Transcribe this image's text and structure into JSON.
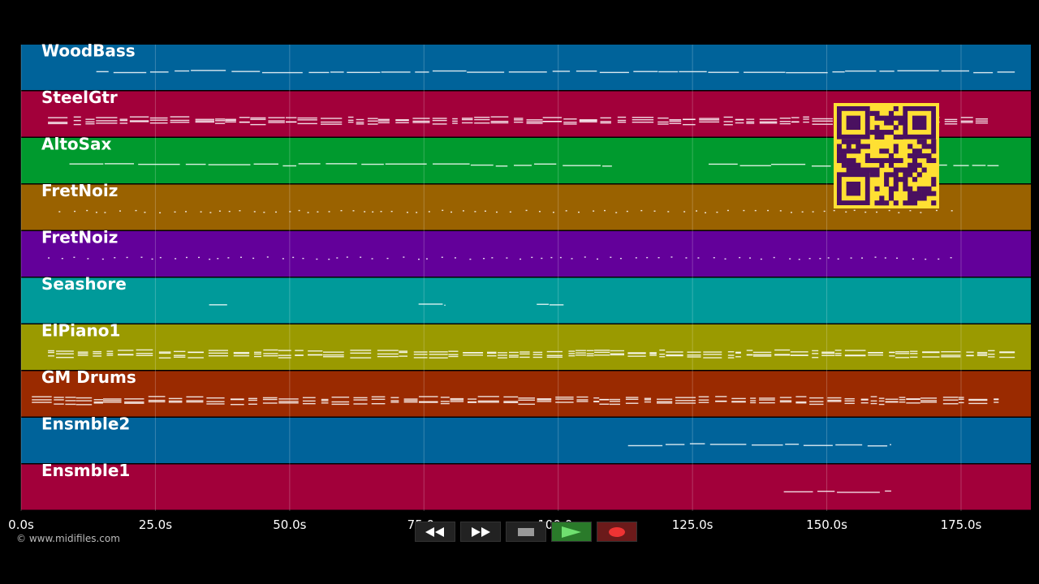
{
  "tracks": [
    {
      "name": "WoodBass",
      "color": "#00639a"
    },
    {
      "name": "SteelGtr",
      "color": "#a2003a"
    },
    {
      "name": "AltoSax",
      "color": "#009a2e"
    },
    {
      "name": "FretNoiz",
      "color": "#9a6200"
    },
    {
      "name": "FretNoiz",
      "color": "#63009a"
    },
    {
      "name": "Seashore",
      "color": "#009a9a"
    },
    {
      "name": "ElPiano1",
      "color": "#9a9a00"
    },
    {
      "name": "GM Drums",
      "color": "#9a2a00"
    },
    {
      "name": "Ensmble2",
      "color": "#00639a"
    },
    {
      "name": "Ensmble1",
      "color": "#a2003a"
    }
  ],
  "timeline": {
    "unit": "s",
    "max_seconds": 188,
    "ticks": [
      "0.0s",
      "25.0s",
      "50.0s",
      "75.0s",
      "100.0s",
      "125.0s",
      "150.0s",
      "175.0s"
    ],
    "tick_values": [
      0,
      25,
      50,
      75,
      100,
      125,
      150,
      175
    ]
  },
  "note_ranges": [
    [
      [
        14,
        185
      ]
    ],
    [
      [
        5,
        180
      ]
    ],
    [
      [
        9,
        110
      ],
      [
        128,
        182
      ]
    ],
    [
      [
        7,
        174
      ]
    ],
    [
      [
        5,
        174
      ]
    ],
    [
      [
        35,
        39
      ],
      [
        74,
        79
      ],
      [
        96,
        101
      ]
    ],
    [
      [
        5,
        185
      ]
    ],
    [
      [
        2,
        182
      ]
    ],
    [
      [
        113,
        162
      ]
    ],
    [
      [
        142,
        162
      ]
    ]
  ],
  "qr_icon": "qr-code-icon",
  "copyright": "© www.midifiles.com",
  "transport": {
    "buttons": [
      {
        "name": "rewind-button",
        "icon": "rewind-icon"
      },
      {
        "name": "fast-forward-button",
        "icon": "fast-forward-icon"
      },
      {
        "name": "stop-button",
        "icon": "stop-icon"
      },
      {
        "name": "play-button",
        "icon": "play-icon"
      },
      {
        "name": "record-button",
        "icon": "record-icon"
      }
    ]
  }
}
